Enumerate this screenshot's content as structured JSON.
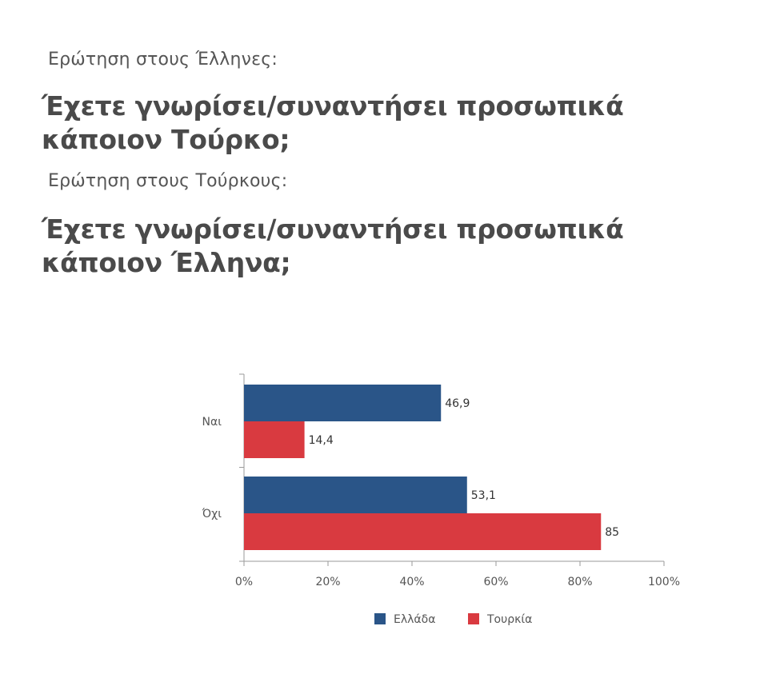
{
  "question_1": {
    "label": "Ερώτηση στους Έλληνες:",
    "text": "Έχετε γνωρίσει/συναντήσει προσωπικά κάποιον Τούρκο;"
  },
  "question_2": {
    "label": "Ερώτηση στους Τούρκους:",
    "text": "Έχετε γνωρίσει/συναντήσει προσωπικά κάποιον Έλληνα;"
  },
  "chart_data": {
    "type": "bar",
    "orientation": "horizontal",
    "categories": [
      "Ναι",
      "Όχι"
    ],
    "series": [
      {
        "name": "Ελλάδα",
        "color": "#2a5588",
        "values": [
          46.9,
          53.1
        ],
        "labels": [
          "46,9",
          "53,1"
        ]
      },
      {
        "name": "Τουρκία",
        "color": "#d93a40",
        "values": [
          14.4,
          85
        ],
        "labels": [
          "14,4",
          "85"
        ]
      }
    ],
    "xlim": [
      0,
      100
    ],
    "xticks": [
      "0%",
      "20%",
      "40%",
      "60%",
      "80%",
      "100%"
    ],
    "grid": false,
    "legend": "bottom"
  }
}
